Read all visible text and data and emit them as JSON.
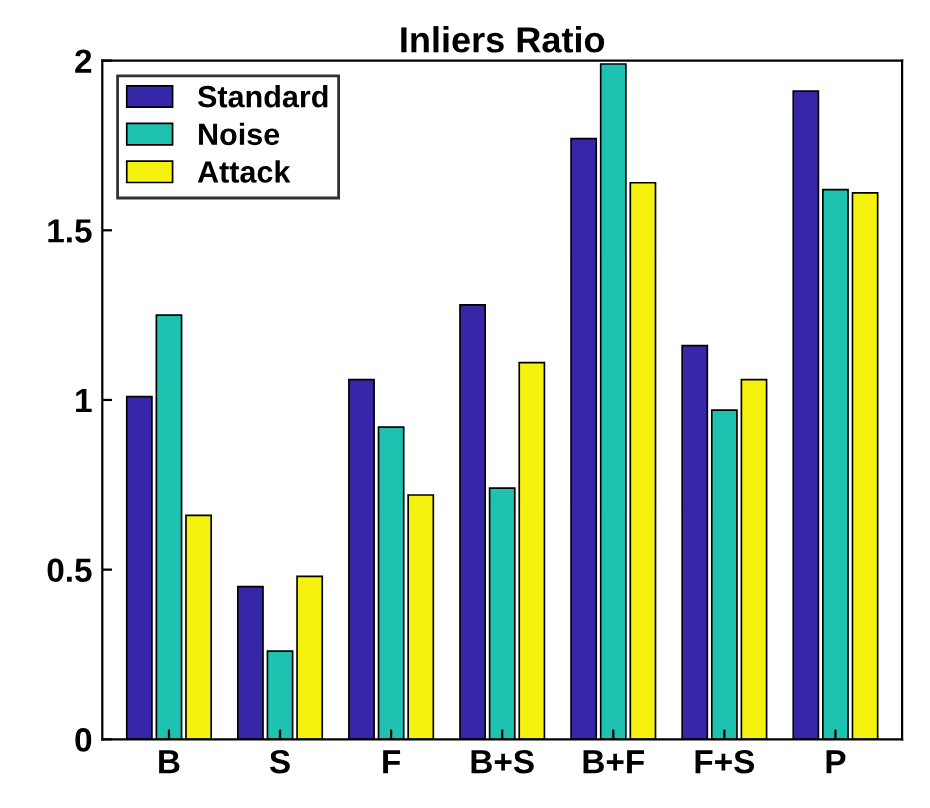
{
  "chart_data": {
    "type": "bar",
    "title": "Inliers Ratio",
    "categories": [
      "B",
      "S",
      "F",
      "B+S",
      "B+F",
      "F+S",
      "P"
    ],
    "series": [
      {
        "name": "Standard",
        "color": "#3527a8",
        "values": [
          1.01,
          0.45,
          1.06,
          1.28,
          1.77,
          1.16,
          1.91
        ]
      },
      {
        "name": "Noise",
        "color": "#1fc1b0",
        "values": [
          1.25,
          0.26,
          0.92,
          0.74,
          1.99,
          0.97,
          1.62
        ]
      },
      {
        "name": "Attack",
        "color": "#f5f20f",
        "values": [
          0.66,
          0.48,
          0.72,
          1.11,
          1.64,
          1.06,
          1.61
        ]
      }
    ],
    "ylim": [
      0,
      2
    ],
    "yticks": [
      0,
      0.5,
      1,
      1.5,
      2
    ],
    "grid": false,
    "legend": "top left"
  }
}
